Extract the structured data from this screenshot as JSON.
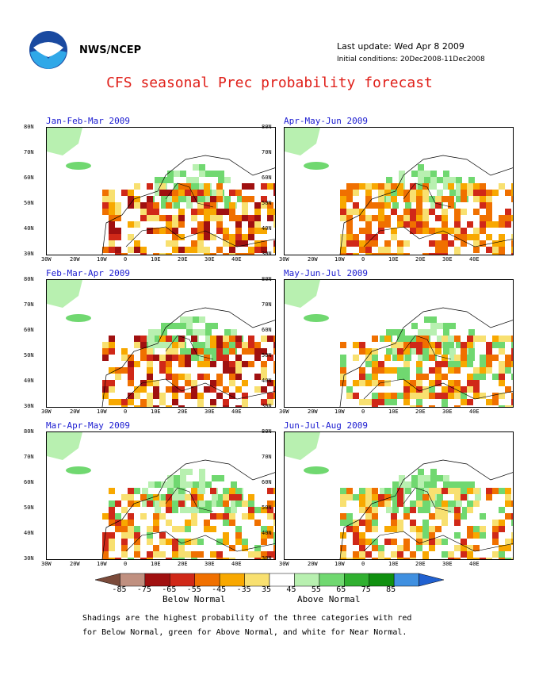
{
  "header": {
    "org": "NWS/NCEP",
    "last_update": "Last update: Wed Apr 8 2009",
    "initial_conditions": "Initial conditions: 20Dec2008-11Dec2008",
    "title": "CFS seasonal Prec probability forecast"
  },
  "lat_labels": [
    "80N",
    "70N",
    "60N",
    "50N",
    "40N",
    "30N"
  ],
  "lon_labels": [
    "30W",
    "20W",
    "10W",
    "0",
    "10E",
    "20E",
    "30E",
    "40E"
  ],
  "panels": [
    {
      "title": "Jan-Feb-Mar 2009"
    },
    {
      "title": "Apr-May-Jun 2009"
    },
    {
      "title": "Feb-Mar-Apr 2009"
    },
    {
      "title": "May-Jun-Jul 2009"
    },
    {
      "title": "Mar-Apr-May 2009"
    },
    {
      "title": "Jun-Jul-Aug 2009"
    }
  ],
  "legend": {
    "ticks": [
      "-85",
      "-75",
      "-65",
      "-55",
      "-45",
      "-35",
      "35",
      "45",
      "55",
      "65",
      "75",
      "85"
    ],
    "below_label": "Below Normal",
    "above_label": "Above Normal",
    "colors": [
      "#7a4a3a",
      "#c09080",
      "#a01010",
      "#d02818",
      "#f07000",
      "#f8a800",
      "#f8e070",
      "#ffffff",
      "#b8f0b0",
      "#70d870",
      "#30b030",
      "#109010",
      "#4090e0",
      "#2060d0"
    ]
  },
  "footnote": {
    "line1": "Shadings are the highest probability of the three categories with red",
    "line2": "for Below Normal, green for Above Normal, and white for Near Normal."
  }
}
